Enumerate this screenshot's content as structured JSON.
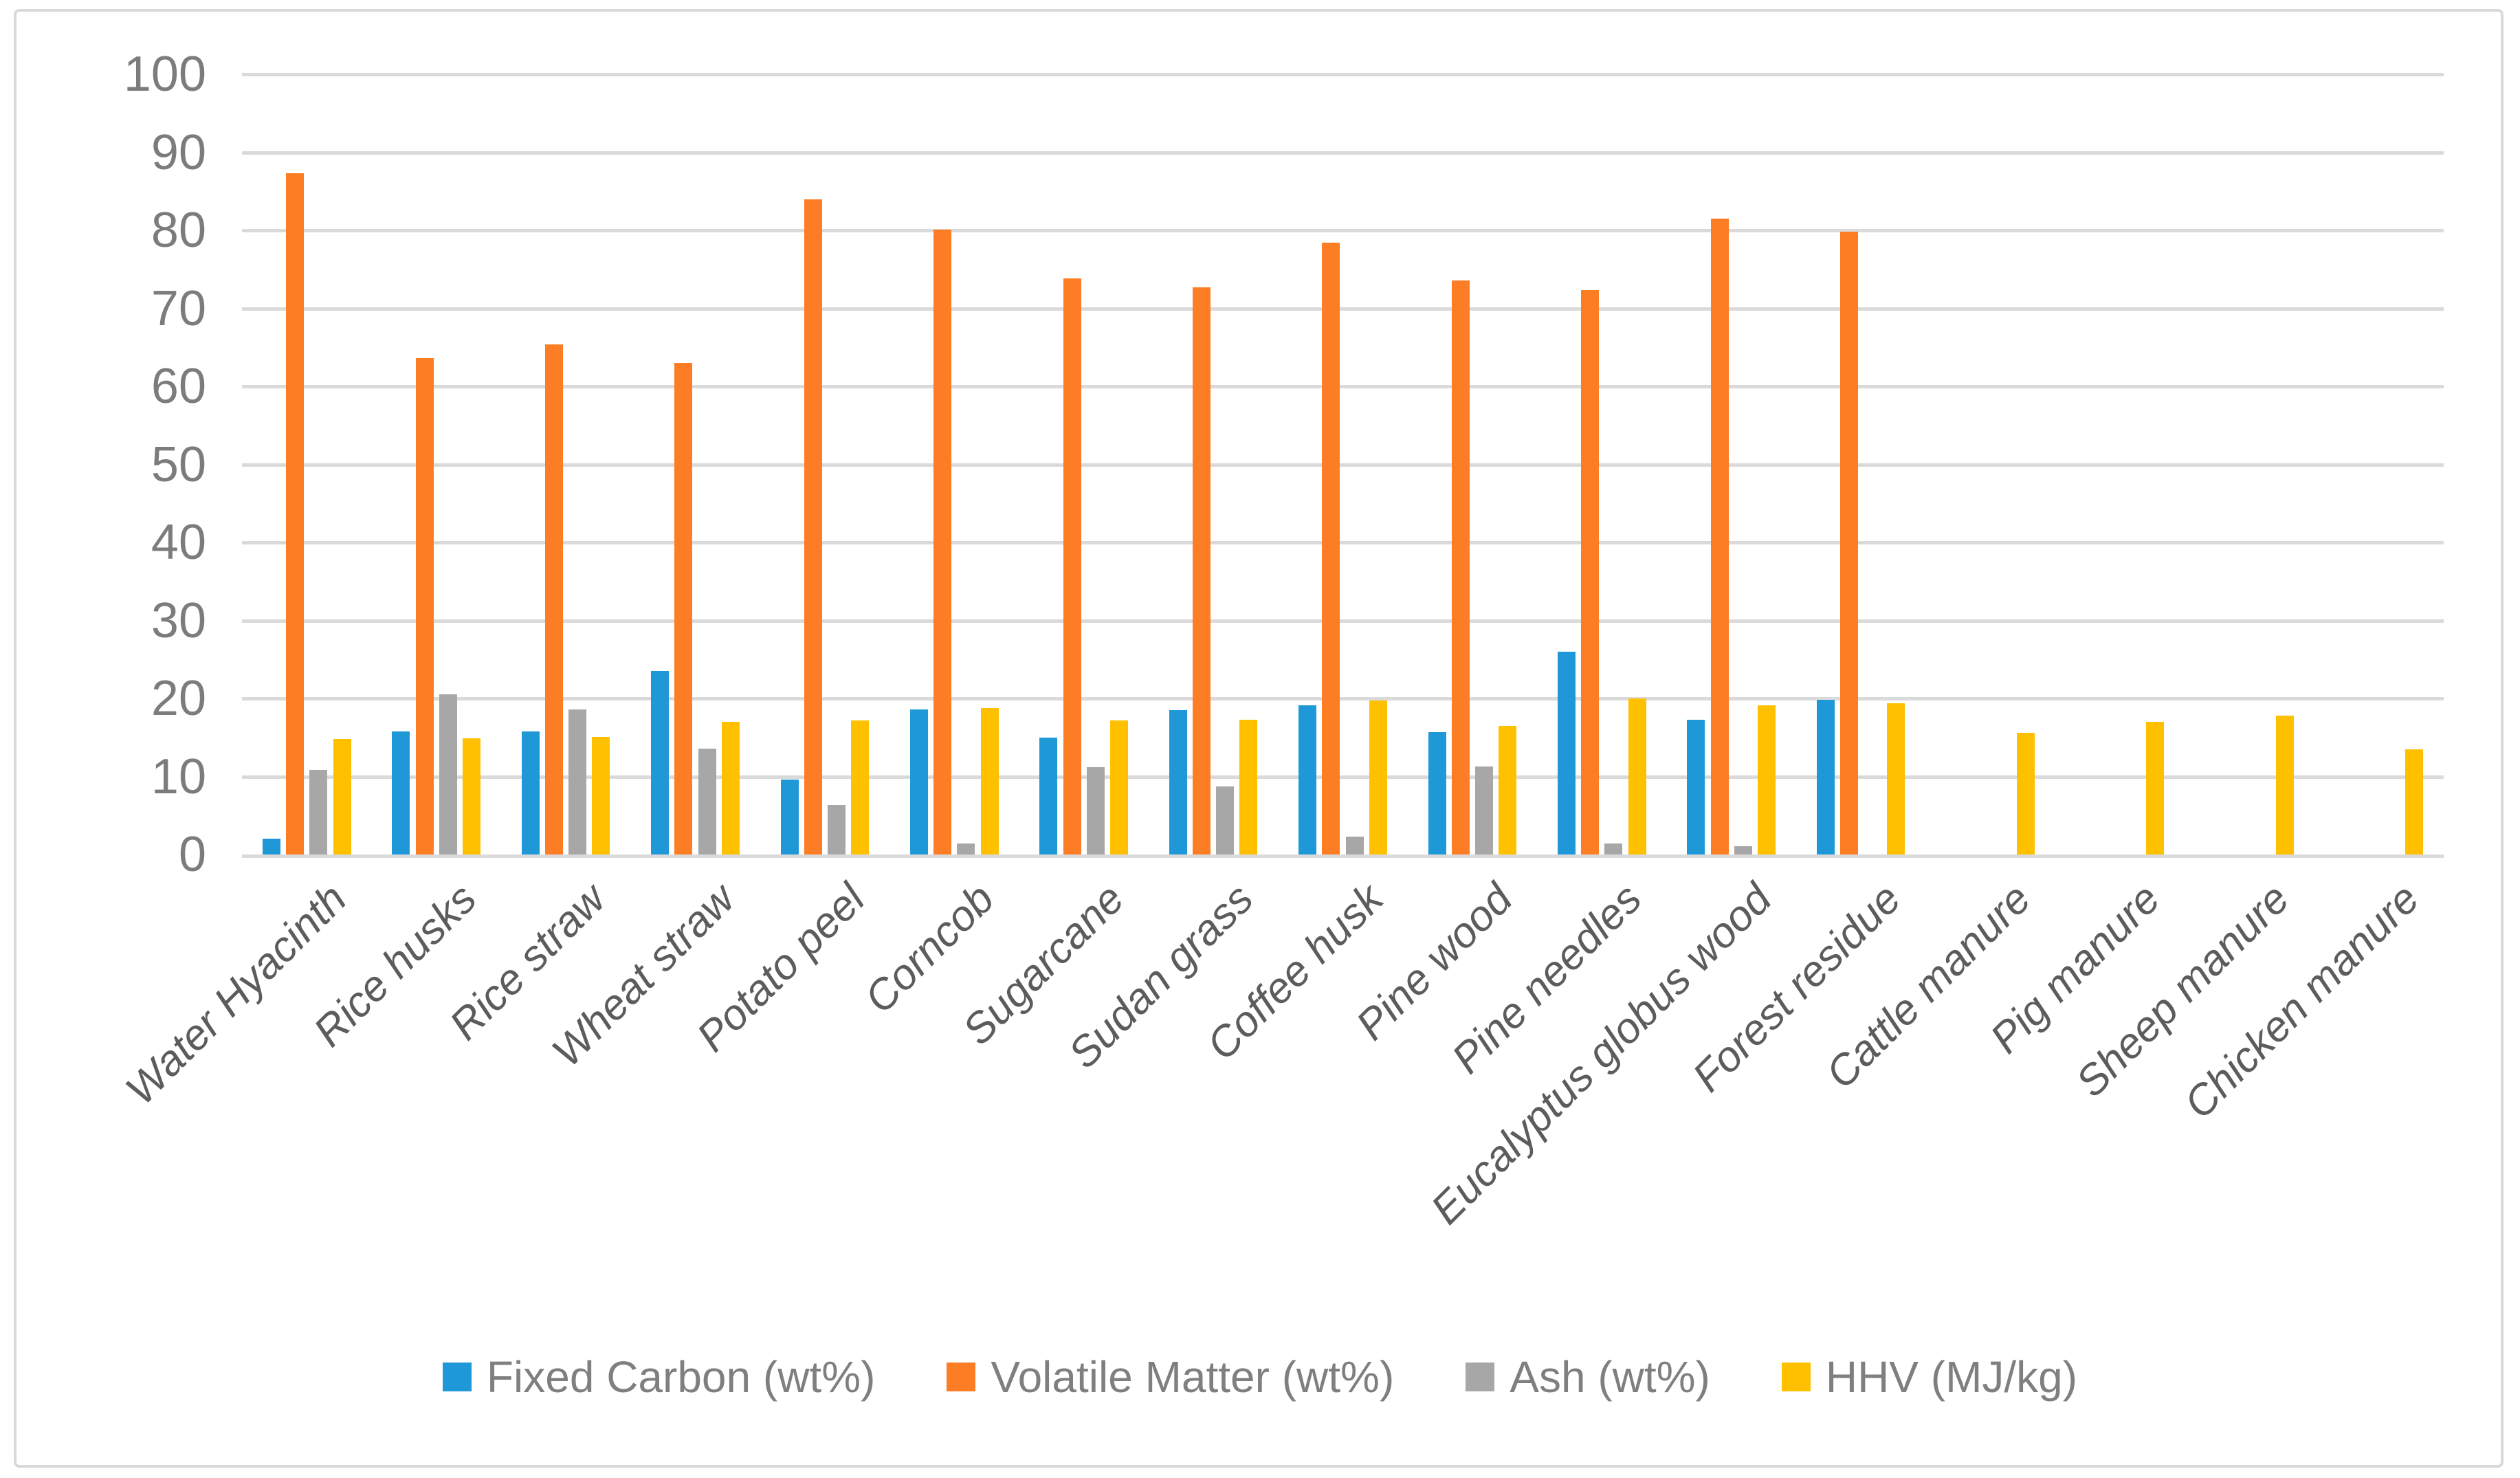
{
  "figure": {
    "background": "#FFFFFF",
    "border_color": "#D9D9D9"
  },
  "chart_data": {
    "type": "bar",
    "title": "",
    "xlabel": "",
    "ylabel": "",
    "categories": [
      "Water Hyacinth",
      "Rice husks",
      "Rice straw",
      "Wheat straw",
      "Potato peel",
      "Corncob",
      "Sugarcane",
      "Sudan grass",
      "Coffee husk",
      "Pine wood",
      "Pine needles",
      "Eucalyptus globus wood",
      "Forest residue",
      "Cattle manure",
      "Pig manure",
      "Sheep manure",
      "Chicken manure"
    ],
    "series": [
      {
        "name": "Fixed Carbon (wt%)",
        "color": "#1F98D8",
        "values": [
          2.0,
          15.8,
          15.8,
          23.5,
          9.6,
          18.6,
          15.0,
          18.5,
          19.1,
          15.7,
          26.0,
          17.3,
          19.8,
          0,
          0,
          0,
          0
        ]
      },
      {
        "name": "Volatile Matter (wt%)",
        "color": "#FC7D23",
        "values": [
          87.3,
          63.6,
          65.4,
          63.0,
          84.0,
          80.1,
          73.8,
          72.7,
          78.4,
          73.6,
          72.3,
          81.5,
          79.8,
          0,
          0,
          0,
          0
        ]
      },
      {
        "name": "Ash (wt%)",
        "color": "#A7A7A7",
        "values": [
          10.8,
          20.5,
          18.6,
          13.6,
          6.3,
          1.4,
          11.2,
          8.7,
          2.3,
          11.3,
          1.4,
          1.1,
          0,
          0,
          0,
          0,
          0
        ]
      },
      {
        "name": "HHV (MJ/kg)",
        "color": "#FFC000",
        "values": [
          14.8,
          14.9,
          15.1,
          17.0,
          17.2,
          18.8,
          17.2,
          17.3,
          19.7,
          16.5,
          20.0,
          19.1,
          19.4,
          15.6,
          17.0,
          17.8,
          13.5
        ]
      }
    ],
    "ylim": [
      0,
      100
    ],
    "ytick_labels": [
      "0",
      "10",
      "20",
      "30",
      "40",
      "50",
      "60",
      "70",
      "80",
      "90",
      "100"
    ],
    "grid": true,
    "gridline_color": "#DADADA",
    "legend_position": "bottom",
    "axis_text_color": "#7C7C7C",
    "category_text_color": "#5C5C5C",
    "legend_text_color": "#7F7F7F"
  }
}
